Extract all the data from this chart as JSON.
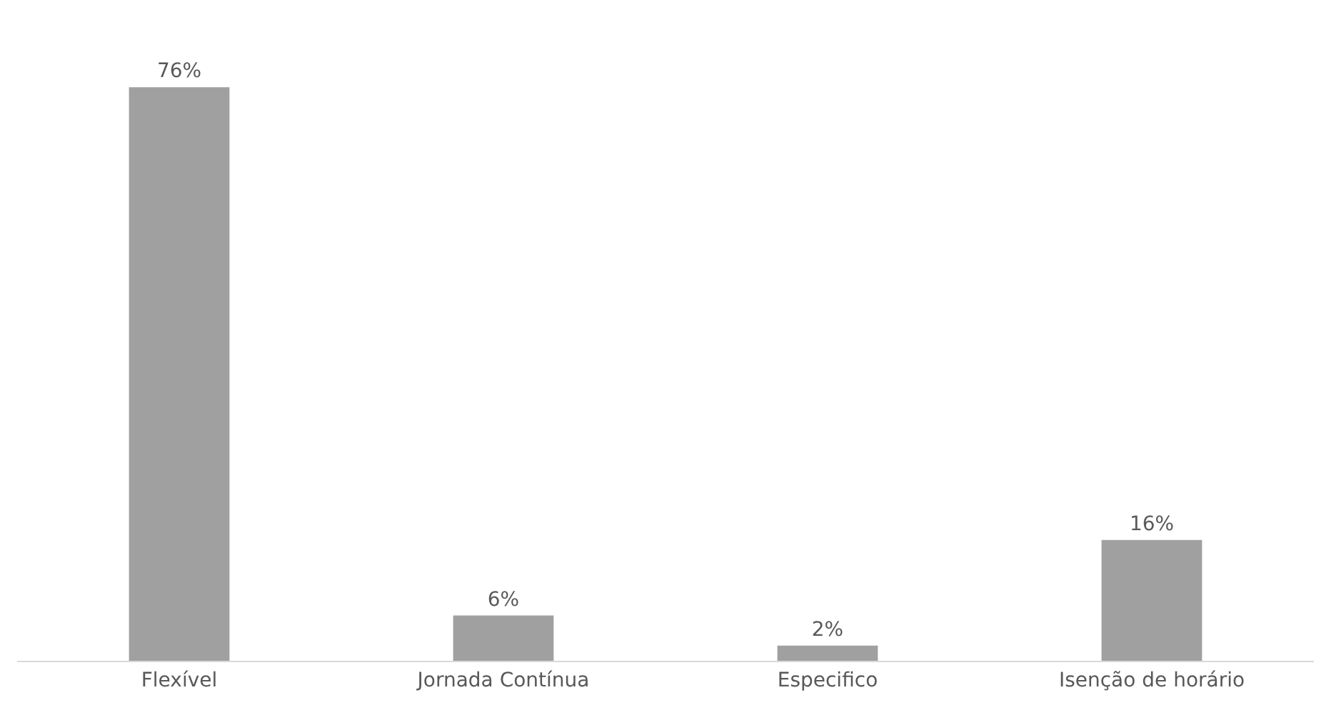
{
  "chart_data": {
    "type": "bar",
    "categories": [
      "Flexível",
      "Jornada Contínua",
      "Especifico",
      "Isenção de horário"
    ],
    "values": [
      76,
      6,
      2,
      16
    ],
    "value_labels": [
      "76%",
      "6%",
      "2%",
      "16%"
    ],
    "color": "#a0a0a0"
  }
}
